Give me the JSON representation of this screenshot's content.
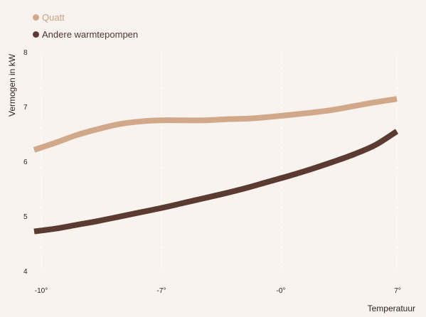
{
  "chart_data": {
    "type": "line",
    "title": "",
    "xlabel": "Temperatuur",
    "ylabel": "Vermogen in kW",
    "x_ticks": [
      "-10°",
      "-7°",
      "-0°",
      "7°"
    ],
    "y_ticks": [
      "4",
      "5",
      "6",
      "7",
      "8"
    ],
    "ylim": [
      4,
      8
    ],
    "grid": true,
    "legend_position": "top-left",
    "series": [
      {
        "name": "Quatt",
        "color": "#d1a98a",
        "points": [
          {
            "t": -10,
            "kw": 6.21
          },
          {
            "t": -9,
            "kw": 6.34
          },
          {
            "t": -8,
            "kw": 6.48
          },
          {
            "t": -7,
            "kw": 6.59
          },
          {
            "t": -6,
            "kw": 6.68
          },
          {
            "t": -5,
            "kw": 6.73
          },
          {
            "t": -4,
            "kw": 6.75
          },
          {
            "t": -3,
            "kw": 6.75
          },
          {
            "t": -2,
            "kw": 6.75
          },
          {
            "t": -1,
            "kw": 6.77
          },
          {
            "t": 0,
            "kw": 6.78
          },
          {
            "t": 1,
            "kw": 6.81
          },
          {
            "t": 2,
            "kw": 6.85
          },
          {
            "t": 3,
            "kw": 6.89
          },
          {
            "t": 4,
            "kw": 6.94
          },
          {
            "t": 5,
            "kw": 7.01
          },
          {
            "t": 6,
            "kw": 7.08
          },
          {
            "t": 7,
            "kw": 7.14
          }
        ]
      },
      {
        "name": "Andere warmtepompen",
        "color": "#5a3a31",
        "points": [
          {
            "t": -10,
            "kw": 4.72
          },
          {
            "t": -9,
            "kw": 4.77
          },
          {
            "t": -8,
            "kw": 4.84
          },
          {
            "t": -7,
            "kw": 4.91
          },
          {
            "t": -6,
            "kw": 4.99
          },
          {
            "t": -5,
            "kw": 5.07
          },
          {
            "t": -4,
            "kw": 5.15
          },
          {
            "t": -3,
            "kw": 5.24
          },
          {
            "t": -2,
            "kw": 5.33
          },
          {
            "t": -1,
            "kw": 5.42
          },
          {
            "t": 0,
            "kw": 5.52
          },
          {
            "t": 1,
            "kw": 5.63
          },
          {
            "t": 2,
            "kw": 5.74
          },
          {
            "t": 3,
            "kw": 5.86
          },
          {
            "t": 4,
            "kw": 5.99
          },
          {
            "t": 5,
            "kw": 6.13
          },
          {
            "t": 6,
            "kw": 6.3
          },
          {
            "t": 7,
            "kw": 6.55
          }
        ]
      }
    ]
  }
}
